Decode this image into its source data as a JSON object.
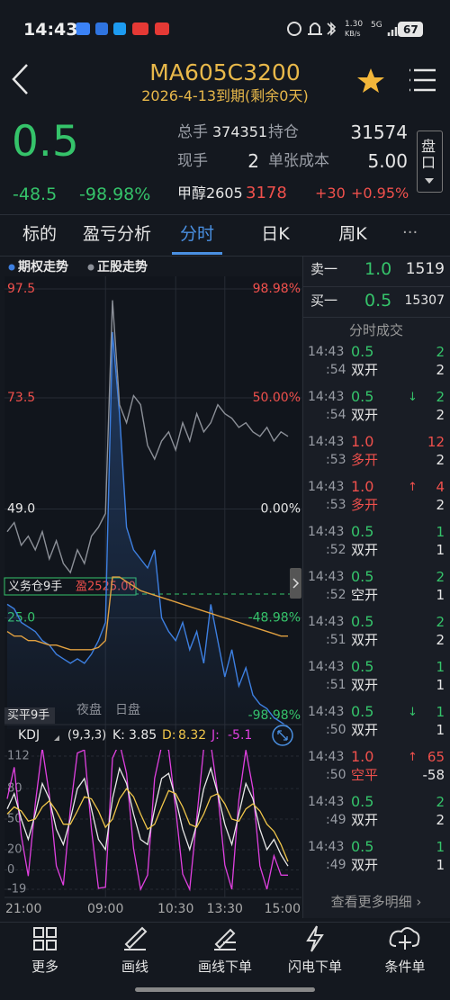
{
  "status": {
    "time": "14:43",
    "speed": "1.30",
    "speed_unit": "KB/s",
    "network": "5G",
    "battery": 67
  },
  "header": {
    "title": "MA605C3200",
    "subtitle": "2026-4-13到期(剩余0天)"
  },
  "quote": {
    "price": 0.5,
    "change": -48.5,
    "change_pct": "-98.98%",
    "stats": [
      {
        "label": "总手",
        "value": 374351
      },
      {
        "label": "持仓",
        "value": 31574
      },
      {
        "label": "现手",
        "value": 2
      },
      {
        "label": "单张成本",
        "value": "5.00"
      }
    ],
    "underlying": {
      "name": "甲醇2605",
      "price": 3178,
      "change": "+30",
      "change_pct": "+0.95%"
    },
    "side_tab": "盘口"
  },
  "tabs": [
    "标的",
    "盈亏分析",
    "分时",
    "日K",
    "周K"
  ],
  "active_tab": 2,
  "chart": {
    "type": "line",
    "x": [
      "21:00",
      null,
      null,
      null,
      null,
      null,
      null,
      null,
      null,
      null,
      null,
      null,
      null,
      null,
      "09:00",
      null,
      null,
      null,
      null,
      null,
      null,
      null,
      null,
      null,
      "10:30",
      null,
      null,
      null,
      null,
      null,
      null,
      "13:30",
      null,
      null,
      null,
      null,
      null,
      null,
      null,
      null,
      "15:00"
    ],
    "ylim": [
      0.5,
      97.5
    ],
    "yticks": [
      97.5,
      73.5,
      {
        "value": 49,
        "label": "49.0"
      },
      {
        "value": 25,
        "label": "25.0"
      }
    ],
    "y2lim": [
      -98.98,
      98.98
    ],
    "y2ticks": [
      {
        "value": 98.98,
        "label": "98.98%"
      },
      {
        "value": 50,
        "label": "50.00%"
      },
      {
        "value": 0,
        "label": "0.00%"
      },
      {
        "value": -48.98,
        "label": "-48.98%"
      },
      {
        "value": -98.98,
        "label": "-98.98%"
      }
    ],
    "grid": true,
    "series": [
      {
        "name": "期权走势",
        "color": "#3d7fe0",
        "values": [
          28,
          27,
          24,
          23,
          22,
          20,
          19,
          17,
          16,
          15,
          16,
          15,
          17,
          20,
          24,
          88,
          70,
          45,
          40,
          38,
          36,
          40,
          25,
          22,
          20,
          24,
          18,
          22,
          15,
          28,
          20,
          12,
          18,
          10,
          14,
          8,
          6,
          5,
          3,
          2,
          1
        ]
      },
      {
        "name": "正股走势",
        "color": "#8c9098",
        "values": [
          44,
          46,
          41,
          43,
          40,
          44,
          38,
          42,
          37,
          35,
          40,
          37,
          43,
          45,
          48,
          95,
          72,
          68,
          74,
          72,
          63,
          60,
          64,
          66,
          62,
          68,
          64,
          70,
          66,
          68,
          72,
          70,
          69,
          67,
          68,
          66,
          65,
          67,
          64,
          66,
          65
        ]
      },
      {
        "color": "#e0a040",
        "values": [
          22,
          21,
          21,
          20,
          20,
          19.5,
          19,
          19,
          18.5,
          18,
          18,
          18,
          18,
          18.5,
          20,
          34,
          34,
          33,
          32,
          31,
          30.5,
          30,
          29.5,
          29,
          28.5,
          28,
          27.5,
          27,
          26.5,
          26,
          25.5,
          25,
          24.5,
          24,
          23.5,
          23,
          22.5,
          22,
          21.5,
          21,
          21
        ]
      }
    ],
    "annotations": {
      "position": "义务仓9手",
      "pnl": "盈2525.00",
      "sessions": [
        "夜盘",
        "日盘"
      ],
      "close_tag": "买平9手"
    },
    "kdj": {
      "title": "KDJ",
      "params": "(9,3,3)",
      "ylim": [
        -19,
        112
      ],
      "yticks": [
        112,
        80,
        50,
        20,
        0,
        -19
      ],
      "series": [
        {
          "name": "K:",
          "color": "#e8e8e8",
          "values": [
            60,
            75,
            50,
            30,
            55,
            85,
            70,
            40,
            25,
            50,
            80,
            90,
            60,
            30,
            20,
            70,
            100,
            85,
            55,
            30,
            25,
            60,
            90,
            95,
            70,
            40,
            20,
            45,
            80,
            100,
            75,
            45,
            25,
            55,
            85,
            70,
            40,
            20,
            30,
            15,
            3.85
          ]
        },
        {
          "name": "D:",
          "color": "#f0c64a",
          "values": [
            55,
            62,
            58,
            48,
            50,
            62,
            68,
            58,
            45,
            45,
            58,
            72,
            70,
            58,
            42,
            50,
            70,
            80,
            72,
            55,
            40,
            45,
            62,
            78,
            75,
            62,
            45,
            42,
            55,
            72,
            75,
            65,
            50,
            48,
            60,
            65,
            58,
            45,
            38,
            25,
            8.32
          ]
        },
        {
          "name": "J:",
          "color": "#e040e0",
          "values": [
            70,
            101,
            34,
            -6,
            65,
            120,
            74,
            4,
            -15,
            60,
            115,
            118,
            40,
            -18,
            -17,
            110,
            125,
            95,
            21,
            -19,
            -5,
            90,
            122,
            118,
            60,
            -4,
            -19,
            51,
            120,
            124,
            75,
            5,
            -19,
            69,
            118,
            80,
            4,
            -19,
            14,
            -5,
            -5.1
          ]
        }
      ]
    }
  },
  "order_book": [
    {
      "label": "卖一",
      "price": "1.0",
      "volume": 1519
    },
    {
      "label": "买一",
      "price": "0.5",
      "volume": 15307
    }
  ],
  "trades_title": "分时成交",
  "trades": [
    {
      "time": "14:43",
      "sec": ":54",
      "price": "0.5",
      "vol": 2,
      "type": "双开",
      "vol2": 2,
      "color": "#35c36a",
      "type_color": "#e6e6e6"
    },
    {
      "time": "14:43",
      "sec": ":54",
      "price": "0.5",
      "arrow": "↓",
      "vol": 2,
      "type": "双开",
      "vol2": 2,
      "color": "#35c36a",
      "type_color": "#e6e6e6"
    },
    {
      "time": "14:43",
      "sec": ":53",
      "price": "1.0",
      "vol": 12,
      "type": "多开",
      "vol2": 2,
      "color": "#f0504c",
      "type_color": "#f0504c"
    },
    {
      "time": "14:43",
      "sec": ":53",
      "price": "1.0",
      "arrow": "↑",
      "vol": 4,
      "type": "多开",
      "vol2": 2,
      "color": "#f0504c",
      "type_color": "#f0504c"
    },
    {
      "time": "14:43",
      "sec": ":52",
      "price": "0.5",
      "vol": 1,
      "type": "双开",
      "vol2": 1,
      "color": "#35c36a",
      "type_color": "#e6e6e6"
    },
    {
      "time": "14:43",
      "sec": ":52",
      "price": "0.5",
      "vol": 2,
      "type": "空开",
      "vol2": 1,
      "color": "#35c36a",
      "type_color": "#e6e6e6"
    },
    {
      "time": "14:43",
      "sec": ":51",
      "price": "0.5",
      "vol": 2,
      "type": "双开",
      "vol2": 2,
      "color": "#35c36a",
      "type_color": "#e6e6e6"
    },
    {
      "time": "14:43",
      "sec": ":51",
      "price": "0.5",
      "vol": 1,
      "type": "双开",
      "vol2": 1,
      "color": "#35c36a",
      "type_color": "#e6e6e6"
    },
    {
      "time": "14:43",
      "sec": ":50",
      "price": "0.5",
      "arrow": "↓",
      "vol": 1,
      "type": "双开",
      "vol2": 1,
      "color": "#35c36a",
      "type_color": "#e6e6e6"
    },
    {
      "time": "14:43",
      "sec": ":50",
      "price": "1.0",
      "arrow": "↑",
      "vol": 65,
      "type": "空平",
      "vol2": -58,
      "color": "#f0504c",
      "type_color": "#f0504c"
    },
    {
      "time": "14:43",
      "sec": ":49",
      "price": "0.5",
      "vol": 2,
      "type": "双开",
      "vol2": 2,
      "color": "#35c36a",
      "type_color": "#e6e6e6"
    },
    {
      "time": "14:43",
      "sec": ":49",
      "price": "0.5",
      "vol": 1,
      "type": "双开",
      "vol2": 1,
      "color": "#35c36a",
      "type_color": "#e6e6e6"
    }
  ],
  "more_link": "查看更多明细 ›",
  "nav": [
    "更多",
    "画线",
    "画线下单",
    "闪电下单",
    "条件单"
  ]
}
